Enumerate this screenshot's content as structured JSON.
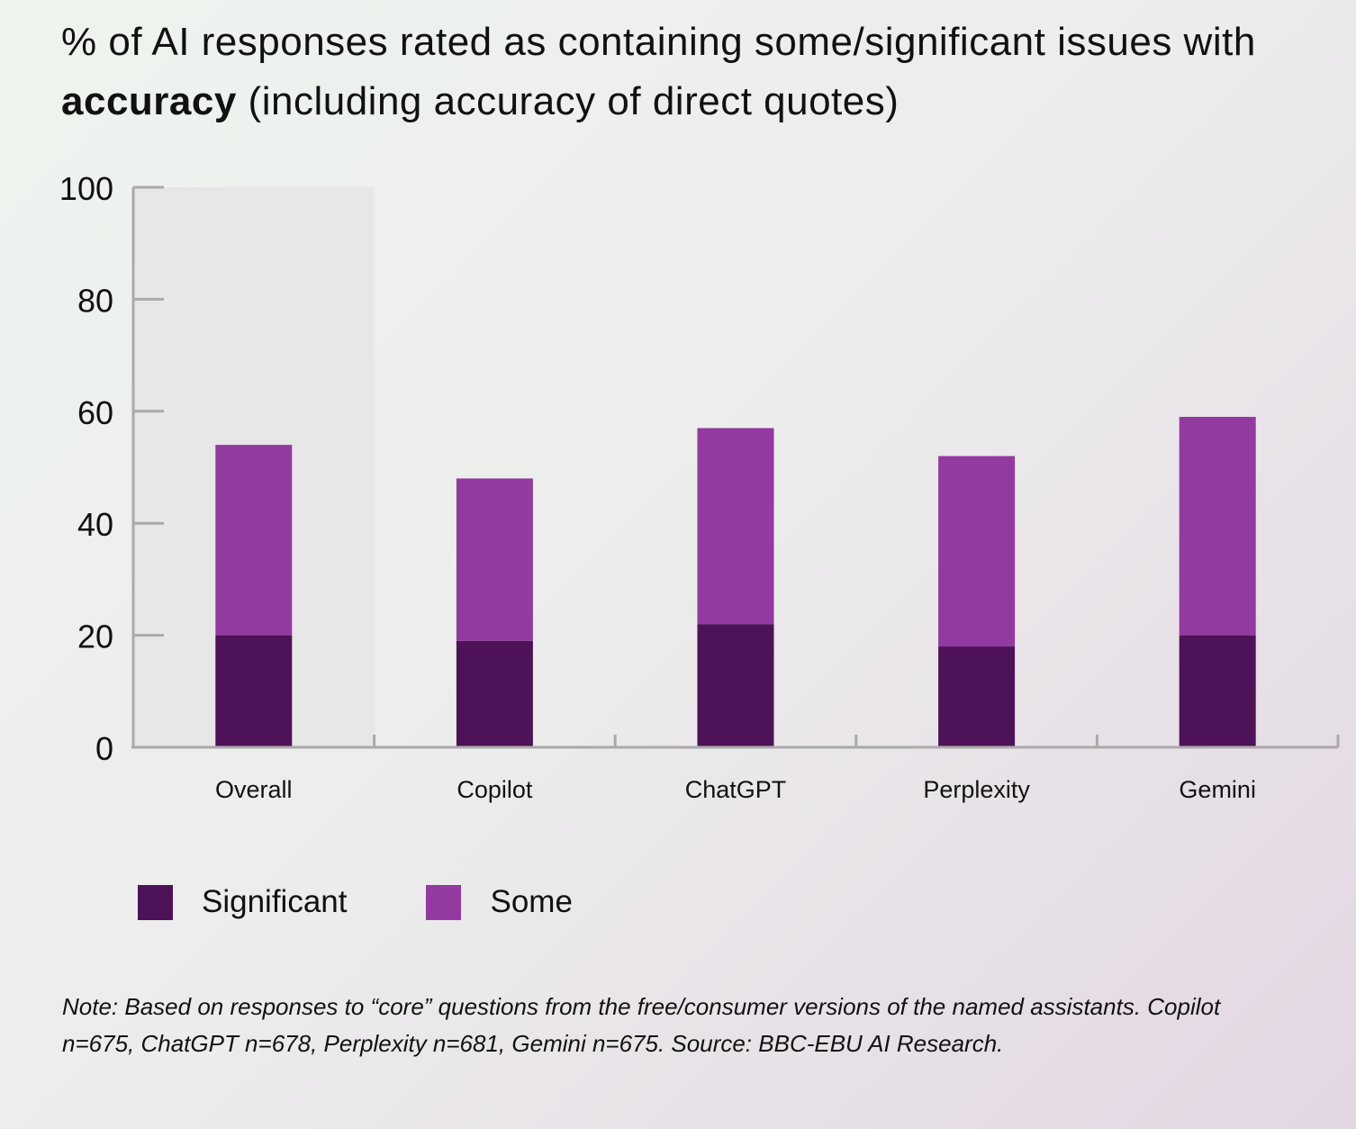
{
  "title": {
    "prefix": "% of AI responses rated as containing some/significant issues with ",
    "bold": "accuracy",
    "suffix": " (including accuracy of direct quotes)"
  },
  "legend": [
    {
      "label": "Significant",
      "color": "#4d1257"
    },
    {
      "label": "Some",
      "color": "#923aa0"
    }
  ],
  "note": "Note: Based on responses to “core” questions from the free/consumer versions of the named assistants. Copilot n=675, ChatGPT n=678, Perplexity n=681, Gemini n=675. Source: BBC-EBU AI Research.",
  "chart_data": {
    "type": "bar",
    "stacked": true,
    "title": "% of AI responses rated as containing some/significant issues with accuracy (including accuracy of direct quotes)",
    "xlabel": "",
    "ylabel": "",
    "categories": [
      "Overall",
      "Copilot",
      "ChatGPT",
      "Perplexity",
      "Gemini"
    ],
    "series": [
      {
        "name": "Significant",
        "color": "#4d1257",
        "values": [
          20,
          19,
          22,
          18,
          20
        ]
      },
      {
        "name": "Some",
        "color": "#923aa0",
        "values": [
          34,
          29,
          35,
          34,
          39
        ]
      }
    ],
    "totals": [
      54,
      48,
      57,
      52,
      59
    ],
    "ylim": [
      0,
      100
    ],
    "yticks": [
      0,
      20,
      40,
      60,
      80,
      100
    ],
    "highlighted_category": "Overall",
    "grid": false,
    "legend_position": "bottom-left"
  }
}
